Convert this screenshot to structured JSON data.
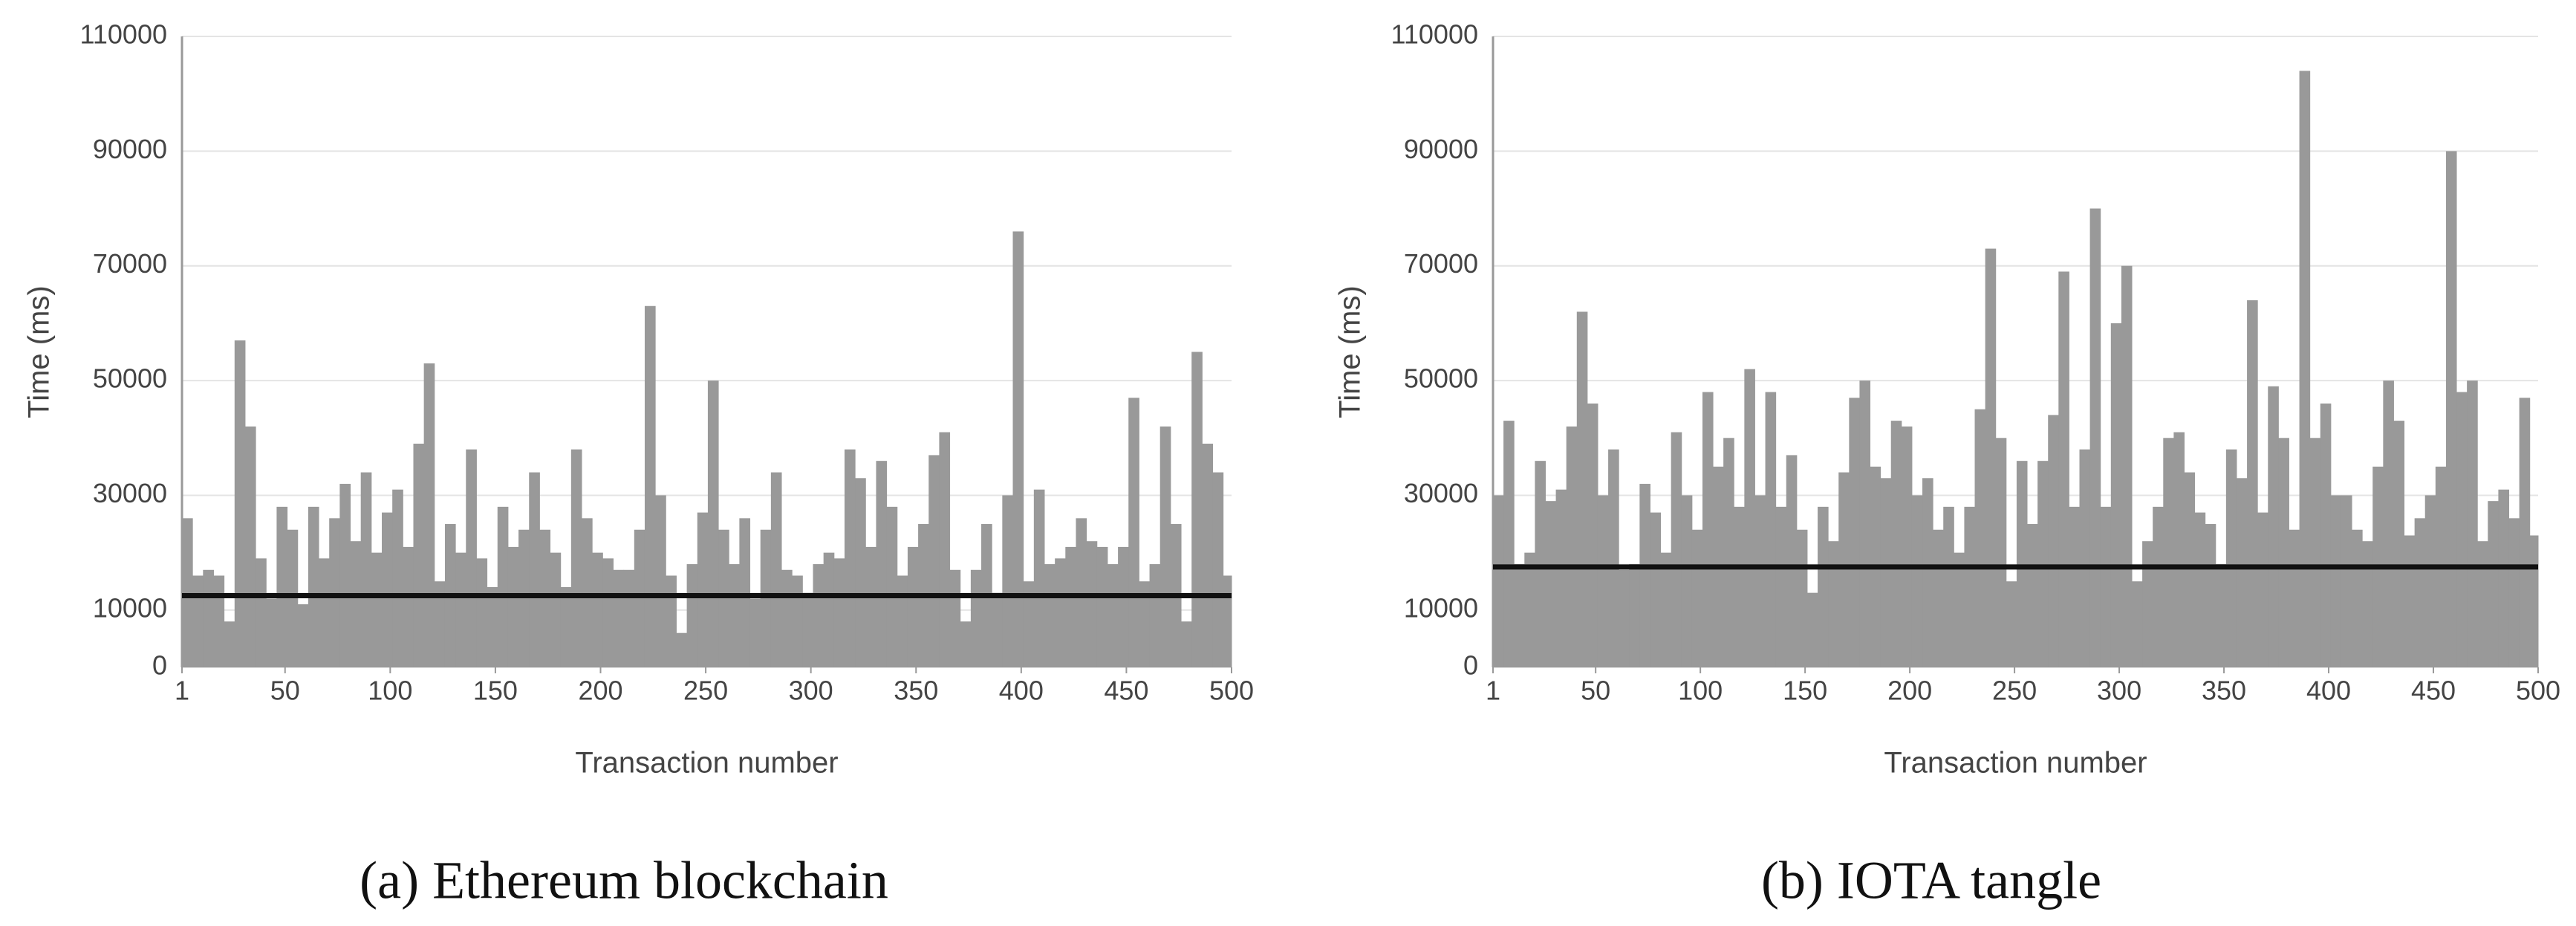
{
  "chart_data": [
    {
      "type": "bar",
      "y_label": "Time (ms)",
      "x_label": "Transaction number",
      "caption": "(a) Ethereum blockchain",
      "color": "#999999",
      "reference_line": 12500,
      "reference_color": "#111111",
      "grid": true,
      "xlim": [
        1,
        500
      ],
      "xticks": [
        1,
        50,
        100,
        150,
        200,
        250,
        300,
        350,
        400,
        450,
        500
      ],
      "ylim": [
        0,
        110000
      ],
      "yticks": [
        0,
        10000,
        30000,
        50000,
        70000,
        90000,
        110000
      ],
      "x": [
        1,
        6,
        11,
        16,
        21,
        26,
        31,
        36,
        41,
        46,
        51,
        56,
        61,
        66,
        71,
        76,
        81,
        86,
        91,
        96,
        101,
        106,
        111,
        116,
        121,
        126,
        131,
        136,
        141,
        146,
        151,
        156,
        161,
        166,
        171,
        176,
        181,
        186,
        191,
        196,
        201,
        206,
        211,
        216,
        221,
        226,
        231,
        236,
        241,
        246,
        251,
        256,
        261,
        266,
        271,
        276,
        281,
        286,
        291,
        296,
        301,
        306,
        311,
        316,
        321,
        326,
        331,
        336,
        341,
        346,
        351,
        356,
        361,
        366,
        371,
        376,
        381,
        386,
        391,
        396,
        401,
        406,
        411,
        416,
        421,
        426,
        431,
        436,
        441,
        446,
        451,
        456,
        461,
        466,
        471,
        476,
        481,
        486,
        491,
        496
      ],
      "values": [
        26000,
        16000,
        17000,
        16000,
        8000,
        57000,
        42000,
        19000,
        12000,
        28000,
        24000,
        11000,
        28000,
        19000,
        26000,
        32000,
        22000,
        34000,
        20000,
        27000,
        31000,
        21000,
        39000,
        53000,
        15000,
        25000,
        20000,
        38000,
        19000,
        14000,
        28000,
        21000,
        24000,
        34000,
        24000,
        20000,
        14000,
        38000,
        26000,
        20000,
        19000,
        17000,
        17000,
        24000,
        63000,
        30000,
        16000,
        6000,
        18000,
        27000,
        50000,
        24000,
        18000,
        26000,
        12000,
        24000,
        34000,
        17000,
        16000,
        13000,
        18000,
        20000,
        19000,
        38000,
        33000,
        21000,
        36000,
        28000,
        16000,
        21000,
        25000,
        37000,
        41000,
        17000,
        8000,
        17000,
        25000,
        13000,
        30000,
        76000,
        15000,
        31000,
        18000,
        19000,
        21000,
        26000,
        22000,
        21000,
        18000,
        21000,
        47000,
        15000,
        18000,
        42000,
        25000,
        8000,
        55000,
        39000,
        34000,
        16000
      ]
    },
    {
      "type": "bar",
      "y_label": "Time (ms)",
      "x_label": "Transaction number",
      "caption": "(b) IOTA tangle",
      "color": "#999999",
      "reference_line": 17500,
      "reference_color": "#111111",
      "grid": true,
      "xlim": [
        1,
        500
      ],
      "xticks": [
        1,
        50,
        100,
        150,
        200,
        250,
        300,
        350,
        400,
        450,
        500
      ],
      "ylim": [
        0,
        110000
      ],
      "yticks": [
        0,
        10000,
        30000,
        50000,
        70000,
        90000,
        110000
      ],
      "x": [
        1,
        6,
        11,
        16,
        21,
        26,
        31,
        36,
        41,
        46,
        51,
        56,
        61,
        66,
        71,
        76,
        81,
        86,
        91,
        96,
        101,
        106,
        111,
        116,
        121,
        126,
        131,
        136,
        141,
        146,
        151,
        156,
        161,
        166,
        171,
        176,
        181,
        186,
        191,
        196,
        201,
        206,
        211,
        216,
        221,
        226,
        231,
        236,
        241,
        246,
        251,
        256,
        261,
        266,
        271,
        276,
        281,
        286,
        291,
        296,
        301,
        306,
        311,
        316,
        321,
        326,
        331,
        336,
        341,
        346,
        351,
        356,
        361,
        366,
        371,
        376,
        381,
        386,
        391,
        396,
        401,
        406,
        411,
        416,
        421,
        426,
        431,
        436,
        441,
        446,
        451,
        456,
        461,
        466,
        471,
        476,
        481,
        486,
        491,
        496
      ],
      "values": [
        30000,
        43000,
        18000,
        20000,
        36000,
        29000,
        31000,
        42000,
        62000,
        46000,
        30000,
        38000,
        17000,
        18000,
        32000,
        27000,
        20000,
        41000,
        30000,
        24000,
        48000,
        35000,
        40000,
        28000,
        52000,
        30000,
        48000,
        28000,
        37000,
        24000,
        13000,
        28000,
        22000,
        34000,
        47000,
        50000,
        35000,
        33000,
        43000,
        42000,
        30000,
        33000,
        24000,
        28000,
        20000,
        28000,
        45000,
        73000,
        40000,
        15000,
        36000,
        25000,
        36000,
        44000,
        69000,
        28000,
        38000,
        80000,
        28000,
        60000,
        70000,
        15000,
        22000,
        28000,
        40000,
        41000,
        34000,
        27000,
        25000,
        18000,
        38000,
        33000,
        64000,
        27000,
        49000,
        40000,
        24000,
        104000,
        40000,
        46000,
        30000,
        30000,
        24000,
        22000,
        35000,
        50000,
        43000,
        23000,
        26000,
        30000,
        35000,
        90000,
        48000,
        50000,
        22000,
        29000,
        31000,
        26000,
        47000,
        23000
      ]
    }
  ]
}
